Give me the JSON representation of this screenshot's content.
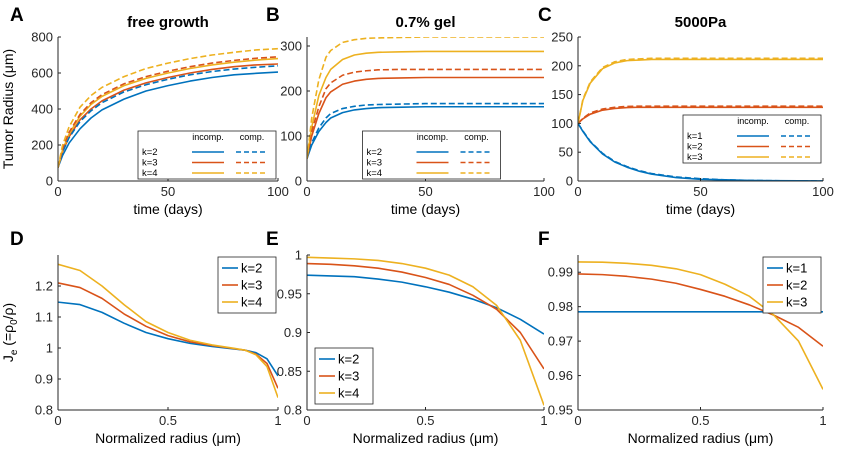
{
  "colors": {
    "k1": "#0072BD",
    "k2": "#D95319",
    "k3": "#EDB120",
    "axis": "#262626"
  },
  "legend_headers": {
    "incomp": "incomp.",
    "comp": "comp."
  },
  "chart_data": [
    {
      "letter": "A",
      "title": "free growth",
      "type": "line",
      "xlabel": "time (days)",
      "ylabel": "Tumor Radius (μm)",
      "xlim": [
        0,
        100
      ],
      "ylim": [
        0,
        800
      ],
      "xticks": [
        0,
        50,
        100
      ],
      "yticks": [
        0,
        200,
        400,
        600,
        800
      ],
      "legend": {
        "style": "incomp-comp",
        "position": "bottom-right",
        "labels": [
          "k=2",
          "k=3",
          "k=4"
        ]
      },
      "series": [
        {
          "name": "k=2 incomp.",
          "color": "k1",
          "dashed": false,
          "x": [
            0,
            2,
            5,
            10,
            15,
            20,
            30,
            40,
            50,
            60,
            70,
            80,
            90,
            100
          ],
          "y": [
            75,
            140,
            210,
            290,
            350,
            395,
            455,
            500,
            530,
            555,
            575,
            590,
            598,
            605
          ]
        },
        {
          "name": "k=3 incomp.",
          "color": "k2",
          "dashed": false,
          "x": [
            0,
            2,
            5,
            10,
            15,
            20,
            30,
            40,
            50,
            60,
            70,
            80,
            90,
            100
          ],
          "y": [
            75,
            160,
            245,
            340,
            400,
            445,
            505,
            545,
            575,
            600,
            620,
            635,
            645,
            650
          ]
        },
        {
          "name": "k=4 incomp.",
          "color": "k3",
          "dashed": false,
          "x": [
            0,
            2,
            5,
            10,
            15,
            20,
            30,
            40,
            50,
            60,
            70,
            80,
            90,
            100
          ],
          "y": [
            75,
            170,
            260,
            360,
            425,
            470,
            530,
            570,
            600,
            625,
            645,
            660,
            672,
            680
          ]
        },
        {
          "name": "k=2 comp.",
          "color": "k1",
          "dashed": true,
          "x": [
            0,
            2,
            5,
            10,
            15,
            20,
            30,
            40,
            50,
            60,
            70,
            80,
            90,
            100
          ],
          "y": [
            75,
            160,
            240,
            330,
            390,
            435,
            495,
            535,
            565,
            590,
            608,
            622,
            632,
            640
          ]
        },
        {
          "name": "k=3 comp.",
          "color": "k2",
          "dashed": true,
          "x": [
            0,
            2,
            5,
            10,
            15,
            20,
            30,
            40,
            50,
            60,
            70,
            80,
            90,
            100
          ],
          "y": [
            75,
            175,
            270,
            370,
            435,
            480,
            540,
            580,
            610,
            635,
            655,
            670,
            682,
            690
          ]
        },
        {
          "name": "k=4 comp.",
          "color": "k3",
          "dashed": true,
          "x": [
            0,
            2,
            5,
            10,
            15,
            20,
            30,
            40,
            50,
            60,
            70,
            80,
            90,
            100
          ],
          "y": [
            75,
            195,
            300,
            410,
            475,
            520,
            580,
            625,
            655,
            680,
            700,
            715,
            728,
            735
          ]
        }
      ]
    },
    {
      "letter": "B",
      "title": "0.7% gel",
      "type": "line",
      "xlabel": "time (days)",
      "ylabel": "",
      "xlim": [
        0,
        100
      ],
      "ylim": [
        0,
        320
      ],
      "xticks": [
        0,
        50,
        100
      ],
      "yticks": [
        0,
        100,
        200,
        300
      ],
      "legend": {
        "style": "incomp-comp",
        "position": "bottom",
        "labels": [
          "k=2",
          "k=3",
          "k=4"
        ]
      },
      "series": [
        {
          "name": "k=2 incomp.",
          "color": "k1",
          "dashed": false,
          "x": [
            0,
            2,
            5,
            8,
            10,
            15,
            20,
            25,
            30,
            40,
            50,
            60,
            80,
            100
          ],
          "y": [
            50,
            80,
            110,
            130,
            140,
            152,
            158,
            161,
            163,
            164,
            165,
            165,
            165,
            165
          ]
        },
        {
          "name": "k=3 incomp.",
          "color": "k2",
          "dashed": false,
          "x": [
            0,
            2,
            5,
            8,
            10,
            15,
            20,
            25,
            30,
            40,
            50,
            60,
            80,
            100
          ],
          "y": [
            50,
            100,
            150,
            185,
            198,
            215,
            222,
            226,
            228,
            229,
            230,
            230,
            230,
            230
          ]
        },
        {
          "name": "k=4 incomp.",
          "color": "k3",
          "dashed": false,
          "x": [
            0,
            2,
            5,
            8,
            10,
            15,
            20,
            25,
            30,
            40,
            50,
            60,
            80,
            100
          ],
          "y": [
            50,
            120,
            190,
            230,
            248,
            270,
            280,
            284,
            286,
            287,
            288,
            288,
            288,
            288
          ]
        },
        {
          "name": "k=2 comp.",
          "color": "k1",
          "dashed": true,
          "x": [
            0,
            2,
            5,
            8,
            10,
            15,
            20,
            25,
            30,
            40,
            50,
            60,
            80,
            100
          ],
          "y": [
            50,
            85,
            118,
            140,
            150,
            161,
            166,
            169,
            170,
            171,
            172,
            172,
            172,
            172
          ]
        },
        {
          "name": "k=3 comp.",
          "color": "k2",
          "dashed": true,
          "x": [
            0,
            2,
            5,
            8,
            10,
            15,
            20,
            25,
            30,
            40,
            50,
            60,
            80,
            100
          ],
          "y": [
            50,
            110,
            165,
            205,
            218,
            235,
            242,
            245,
            247,
            248,
            248,
            248,
            248,
            248
          ]
        },
        {
          "name": "k=4 comp.",
          "color": "k3",
          "dashed": true,
          "x": [
            0,
            2,
            5,
            8,
            10,
            15,
            20,
            25,
            30,
            40,
            50,
            60,
            80,
            100
          ],
          "y": [
            50,
            140,
            225,
            275,
            290,
            308,
            314,
            317,
            318,
            319,
            320,
            320,
            320,
            320
          ]
        }
      ]
    },
    {
      "letter": "C",
      "title": "5000Pa",
      "type": "line",
      "xlabel": "time (days)",
      "ylabel": "",
      "xlim": [
        0,
        100
      ],
      "ylim": [
        0,
        250
      ],
      "xticks": [
        0,
        50,
        100
      ],
      "yticks": [
        0,
        50,
        100,
        150,
        200,
        250
      ],
      "legend": {
        "style": "incomp-comp",
        "position": "middle-right",
        "labels": [
          "k=1",
          "k=2",
          "k=3"
        ]
      },
      "series": [
        {
          "name": "k=1 incomp.",
          "color": "k1",
          "dashed": false,
          "x": [
            0,
            2,
            5,
            10,
            15,
            20,
            25,
            30,
            40,
            50,
            60,
            70,
            80,
            90,
            100
          ],
          "y": [
            100,
            86,
            68,
            47,
            33,
            24,
            17,
            12,
            6,
            3,
            2,
            1,
            0.5,
            0.3,
            0.2
          ]
        },
        {
          "name": "k=2 incomp.",
          "color": "k2",
          "dashed": false,
          "x": [
            0,
            2,
            5,
            10,
            15,
            20,
            25,
            30,
            40,
            50,
            60,
            70,
            80,
            90,
            100
          ],
          "y": [
            100,
            108,
            116,
            123,
            126,
            127.5,
            128,
            128,
            128,
            128,
            128,
            128,
            128,
            128,
            128
          ]
        },
        {
          "name": "k=3 incomp.",
          "color": "k3",
          "dashed": false,
          "x": [
            0,
            2,
            5,
            10,
            15,
            20,
            25,
            30,
            40,
            50,
            60,
            70,
            80,
            90,
            100
          ],
          "y": [
            100,
            140,
            170,
            195,
            205,
            209,
            210,
            211,
            211,
            211,
            211,
            211,
            211,
            211,
            211
          ]
        },
        {
          "name": "k=1 comp.",
          "color": "k1",
          "dashed": true,
          "x": [
            0,
            2,
            5,
            10,
            15,
            20,
            25,
            30,
            40,
            50,
            60,
            70,
            80,
            90,
            100
          ],
          "y": [
            100,
            87,
            69,
            48,
            34,
            25,
            18,
            13,
            7,
            4,
            2,
            1,
            0.5,
            0.3,
            0.2
          ]
        },
        {
          "name": "k=2 comp.",
          "color": "k2",
          "dashed": true,
          "x": [
            0,
            2,
            5,
            10,
            15,
            20,
            25,
            30,
            40,
            50,
            60,
            70,
            80,
            90,
            100
          ],
          "y": [
            100,
            109,
            118,
            125,
            128,
            129.5,
            130,
            130,
            130,
            130,
            130,
            130,
            130,
            130,
            130
          ]
        },
        {
          "name": "k=3 comp.",
          "color": "k3",
          "dashed": true,
          "x": [
            0,
            2,
            5,
            10,
            15,
            20,
            25,
            30,
            40,
            50,
            60,
            70,
            80,
            90,
            100
          ],
          "y": [
            100,
            142,
            172,
            197,
            207,
            211,
            212,
            213,
            213,
            213,
            213,
            213,
            213,
            213,
            213
          ]
        }
      ]
    },
    {
      "letter": "D",
      "title": "",
      "type": "line",
      "xlabel": "Normalized radius (μm)",
      "ylabel_main": "J",
      "ylabel_sub": "e",
      "ylabel_rest": " (=ρ",
      "ylabel_sub2": "0",
      "ylabel_end": "/ρ)",
      "xlim": [
        0,
        1
      ],
      "ylim": [
        0.8,
        1.3
      ],
      "xticks": [
        0,
        0.5,
        1
      ],
      "yticks": [
        0.8,
        0.9,
        1,
        1.1,
        1.2
      ],
      "legend": {
        "style": "simple",
        "position": "top-right",
        "labels": [
          "k=2",
          "k=3",
          "k=4"
        ]
      },
      "series": [
        {
          "name": "k=2",
          "color": "k1",
          "dashed": false,
          "x": [
            0,
            0.1,
            0.2,
            0.3,
            0.4,
            0.5,
            0.6,
            0.7,
            0.8,
            0.85,
            0.9,
            0.95,
            1
          ],
          "y": [
            1.148,
            1.14,
            1.115,
            1.08,
            1.05,
            1.03,
            1.015,
            1.005,
            0.997,
            0.993,
            0.985,
            0.965,
            0.91
          ]
        },
        {
          "name": "k=3",
          "color": "k2",
          "dashed": false,
          "x": [
            0,
            0.1,
            0.2,
            0.3,
            0.4,
            0.5,
            0.6,
            0.7,
            0.8,
            0.85,
            0.9,
            0.95,
            1
          ],
          "y": [
            1.21,
            1.195,
            1.16,
            1.11,
            1.07,
            1.04,
            1.02,
            1.008,
            0.998,
            0.993,
            0.98,
            0.95,
            0.87
          ]
        },
        {
          "name": "k=4",
          "color": "k3",
          "dashed": false,
          "x": [
            0,
            0.1,
            0.2,
            0.3,
            0.4,
            0.5,
            0.6,
            0.7,
            0.8,
            0.85,
            0.9,
            0.95,
            1
          ],
          "y": [
            1.27,
            1.25,
            1.2,
            1.14,
            1.085,
            1.05,
            1.025,
            1.01,
            0.999,
            0.993,
            0.978,
            0.94,
            0.84
          ]
        }
      ]
    },
    {
      "letter": "E",
      "title": "",
      "type": "line",
      "xlabel": "Normalized radius (μm)",
      "ylabel": "",
      "xlim": [
        0,
        1
      ],
      "ylim": [
        0.8,
        1.0
      ],
      "xticks": [
        0,
        0.5,
        1
      ],
      "yticks": [
        0.8,
        0.85,
        0.9,
        0.95,
        1
      ],
      "legend": {
        "style": "simple",
        "position": "bottom-left",
        "labels": [
          "k=2",
          "k=3",
          "k=4"
        ]
      },
      "series": [
        {
          "name": "k=2",
          "color": "k1",
          "dashed": false,
          "x": [
            0,
            0.1,
            0.2,
            0.3,
            0.4,
            0.5,
            0.6,
            0.7,
            0.8,
            0.9,
            1
          ],
          "y": [
            0.974,
            0.973,
            0.972,
            0.969,
            0.965,
            0.959,
            0.952,
            0.943,
            0.932,
            0.917,
            0.898
          ]
        },
        {
          "name": "k=3",
          "color": "k2",
          "dashed": false,
          "x": [
            0,
            0.1,
            0.2,
            0.3,
            0.4,
            0.5,
            0.6,
            0.7,
            0.8,
            0.9,
            1
          ],
          "y": [
            0.989,
            0.988,
            0.986,
            0.983,
            0.978,
            0.971,
            0.962,
            0.948,
            0.93,
            0.9,
            0.853
          ]
        },
        {
          "name": "k=4",
          "color": "k3",
          "dashed": false,
          "x": [
            0,
            0.1,
            0.2,
            0.3,
            0.4,
            0.5,
            0.6,
            0.7,
            0.8,
            0.9,
            1
          ],
          "y": [
            0.997,
            0.996,
            0.995,
            0.993,
            0.989,
            0.983,
            0.974,
            0.959,
            0.935,
            0.89,
            0.806
          ]
        }
      ]
    },
    {
      "letter": "F",
      "title": "",
      "type": "line",
      "xlabel": "Normalized radius (μm)",
      "ylabel": "",
      "xlim": [
        0,
        1
      ],
      "ylim": [
        0.95,
        0.995
      ],
      "xticks": [
        0,
        0.5,
        1
      ],
      "yticks": [
        0.95,
        0.96,
        0.97,
        0.98,
        0.99
      ],
      "legend": {
        "style": "simple",
        "position": "top-right",
        "labels": [
          "k=1",
          "k=2",
          "k=3"
        ]
      },
      "series": [
        {
          "name": "k=1",
          "color": "k1",
          "dashed": false,
          "x": [
            0,
            1
          ],
          "y": [
            0.9785,
            0.9785
          ]
        },
        {
          "name": "k=2",
          "color": "k2",
          "dashed": false,
          "x": [
            0,
            0.1,
            0.2,
            0.3,
            0.4,
            0.5,
            0.6,
            0.7,
            0.8,
            0.9,
            1
          ],
          "y": [
            0.9895,
            0.9893,
            0.9888,
            0.988,
            0.9868,
            0.985,
            0.983,
            0.9805,
            0.9775,
            0.974,
            0.9685
          ]
        },
        {
          "name": "k=3",
          "color": "k3",
          "dashed": false,
          "x": [
            0,
            0.1,
            0.2,
            0.3,
            0.4,
            0.5,
            0.6,
            0.7,
            0.8,
            0.9,
            1
          ],
          "y": [
            0.993,
            0.9929,
            0.9926,
            0.992,
            0.991,
            0.9893,
            0.9865,
            0.983,
            0.9775,
            0.97,
            0.956
          ]
        }
      ]
    }
  ]
}
